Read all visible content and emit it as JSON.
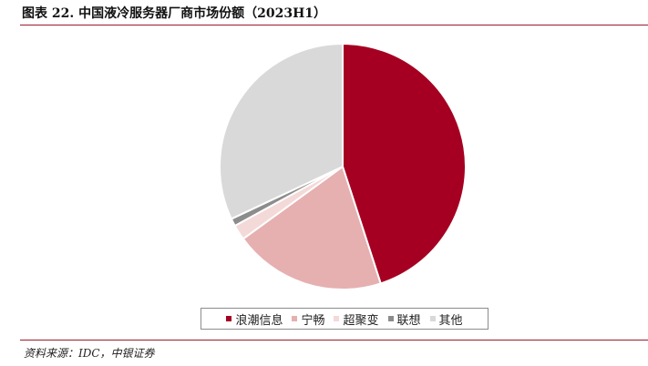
{
  "title": "图表 22. 中国液冷服务器厂商市场份额（2023H1）",
  "source": "资料来源：IDC，中银证券",
  "chart_data": {
    "type": "pie",
    "title": "",
    "slices": [
      {
        "name": "浪潮信息",
        "value": 45.0,
        "color": "#a50021"
      },
      {
        "name": "宁畅",
        "value": 20.0,
        "color": "#e6b0b0"
      },
      {
        "name": "超聚变",
        "value": 2.0,
        "color": "#f4d9d9"
      },
      {
        "name": "联想",
        "value": 1.0,
        "color": "#8c8c8c"
      },
      {
        "name": "其他",
        "value": 32.0,
        "color": "#d9d9d9"
      }
    ],
    "legend_position": "bottom"
  }
}
